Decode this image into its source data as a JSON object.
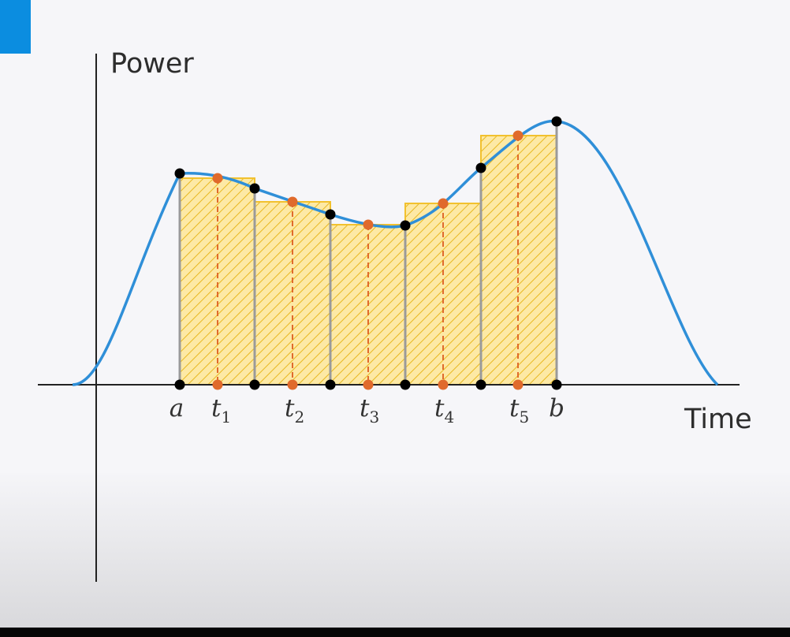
{
  "diagram": {
    "y_axis_label": "Power",
    "x_axis_label": "Time",
    "endpoint_labels": {
      "a": "a",
      "b": "b"
    },
    "sample_labels": [
      {
        "base": "t",
        "sub": "1"
      },
      {
        "base": "t",
        "sub": "2"
      },
      {
        "base": "t",
        "sub": "3"
      },
      {
        "base": "t",
        "sub": "4"
      },
      {
        "base": "t",
        "sub": "5"
      }
    ],
    "intervals": 5,
    "colors": {
      "curve": "#2f8fd8",
      "rect_fill": "#fde9a5",
      "rect_stroke": "#f2c12e",
      "hatch": "#e8b820",
      "sample_point": "#e06a2c",
      "partition_point": "#000000",
      "accent_tab": "#0b8de0"
    }
  }
}
